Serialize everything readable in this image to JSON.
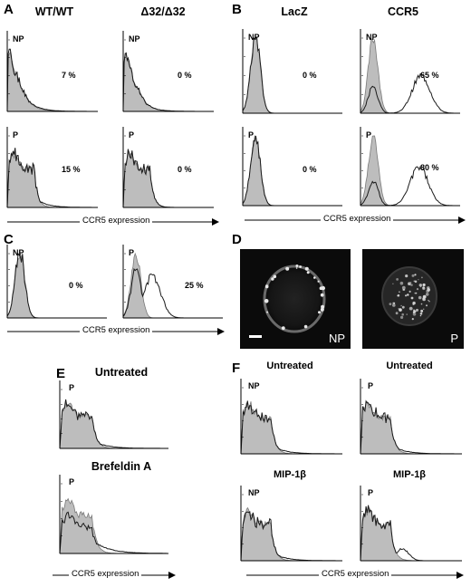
{
  "figure": {
    "panel_letters": {
      "A": "A",
      "B": "B",
      "C": "C",
      "D": "D",
      "E": "E",
      "F": "F"
    },
    "x_axis_label": "CCR5 expression",
    "panel_a": {
      "col_titles": [
        "WT/WT",
        "Δ32/Δ32"
      ],
      "histograms": [
        {
          "tag": "NP",
          "pct": "7 %"
        },
        {
          "tag": "NP",
          "pct": "0 %"
        },
        {
          "tag": "P",
          "pct": "15 %"
        },
        {
          "tag": "P",
          "pct": "0 %"
        }
      ]
    },
    "panel_b": {
      "col_titles": [
        "LacZ",
        "CCR5"
      ],
      "histograms": [
        {
          "tag": "NP",
          "pct": "0 %"
        },
        {
          "tag": "NP",
          "pct": "65 %"
        },
        {
          "tag": "P",
          "pct": "0 %"
        },
        {
          "tag": "P",
          "pct": "80 %"
        }
      ]
    },
    "panel_c": {
      "histograms": [
        {
          "tag": "NP",
          "pct": "0 %"
        },
        {
          "tag": "P",
          "pct": "25 %"
        }
      ]
    },
    "panel_d": {
      "images": [
        {
          "tag": "NP"
        },
        {
          "tag": "P"
        }
      ]
    },
    "panel_e": {
      "titles": [
        "Untreated",
        "Brefeldin A"
      ],
      "histograms": [
        {
          "tag": "P"
        },
        {
          "tag": "P"
        }
      ]
    },
    "panel_f": {
      "titles": [
        "Untreated",
        "Untreated",
        "MIP-1β",
        "MIP-1β"
      ],
      "histograms": [
        {
          "tag": "NP"
        },
        {
          "tag": "P"
        },
        {
          "tag": "NP"
        },
        {
          "tag": "P"
        }
      ]
    }
  }
}
